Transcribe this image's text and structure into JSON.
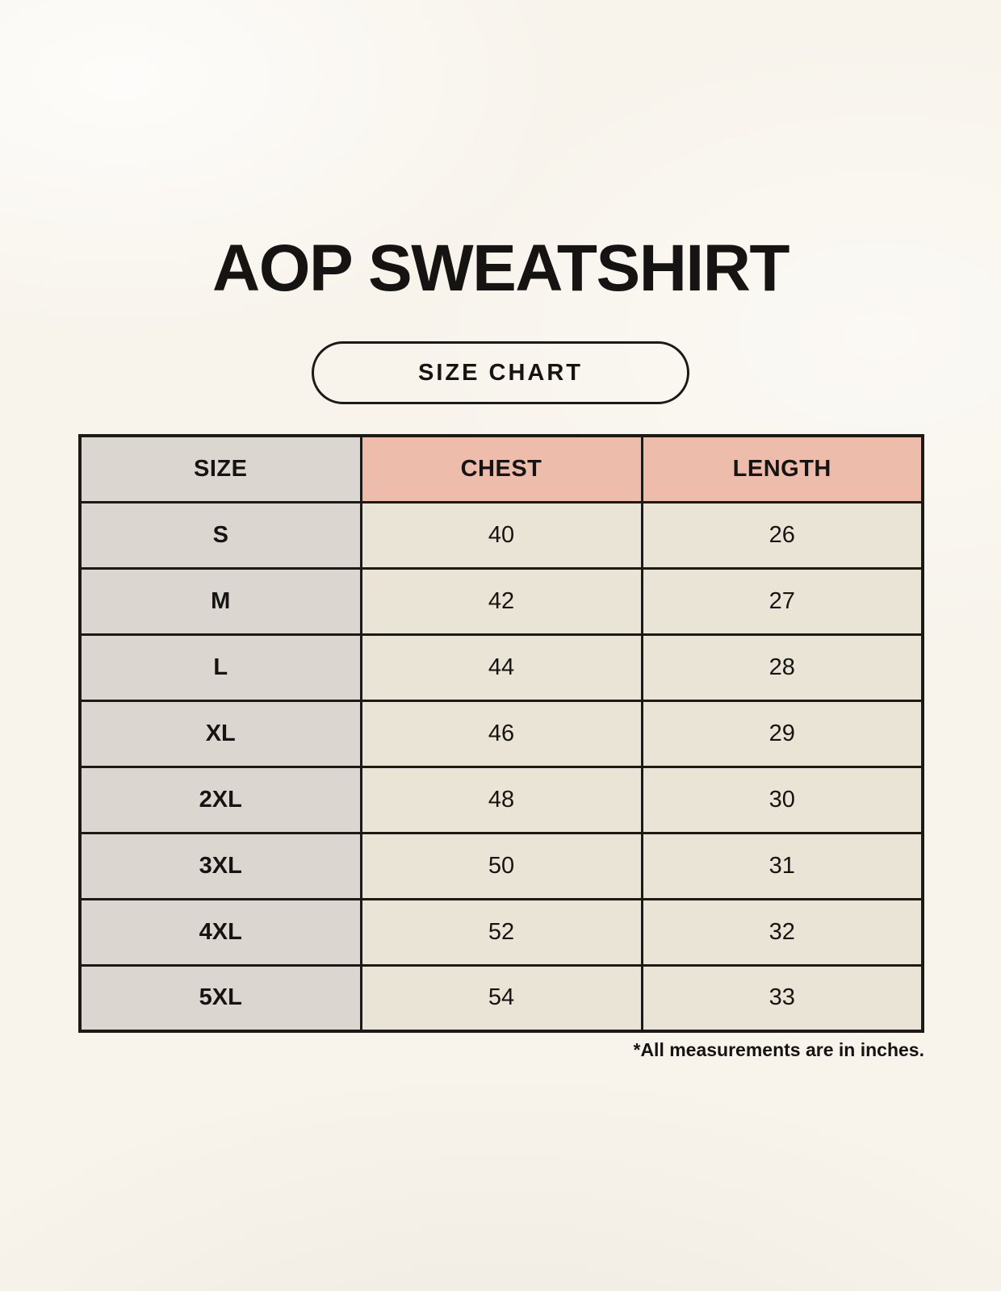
{
  "header": {
    "title": "AOP SWEATSHIRT",
    "badge_label": "SIZE CHART"
  },
  "footer": {
    "note": "*All measurements are in inches."
  },
  "chart_data": {
    "type": "table",
    "title": "AOP SWEATSHIRT",
    "subtitle": "SIZE CHART",
    "columns": [
      "SIZE",
      "CHEST",
      "LENGTH"
    ],
    "rows": [
      [
        "S",
        "40",
        "26"
      ],
      [
        "M",
        "42",
        "27"
      ],
      [
        "L",
        "44",
        "28"
      ],
      [
        "XL",
        "46",
        "29"
      ],
      [
        "2XL",
        "48",
        "30"
      ],
      [
        "3XL",
        "50",
        "31"
      ],
      [
        "4XL",
        "52",
        "32"
      ],
      [
        "5XL",
        "54",
        "33"
      ]
    ],
    "units_note": "*All measurements are in inches."
  },
  "colors": {
    "background": "#f8f4ec",
    "size_column": "#dcd6d0",
    "header_accent": "#eebcaa",
    "data_cell": "#eae4d6",
    "border": "#1c1a17",
    "text": "#161412"
  }
}
